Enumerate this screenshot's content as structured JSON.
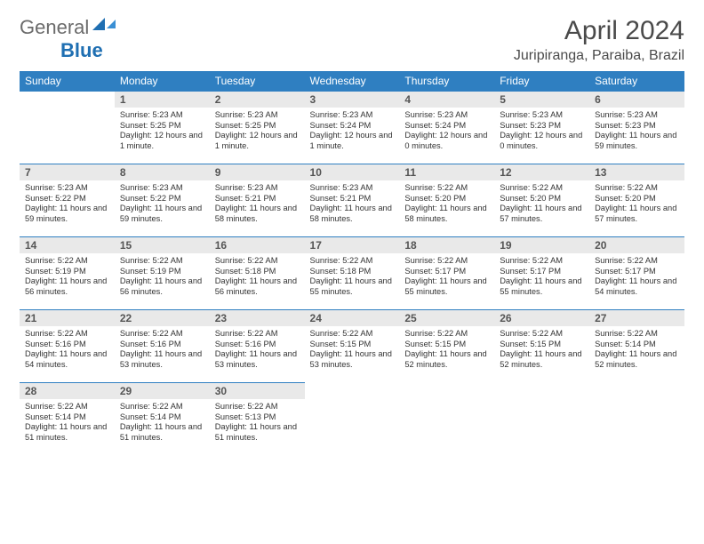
{
  "brand": {
    "text1": "General",
    "text2": "Blue"
  },
  "header": {
    "title": "April 2024",
    "location": "Juripiranga, Paraiba, Brazil"
  },
  "weekdays": [
    "Sunday",
    "Monday",
    "Tuesday",
    "Wednesday",
    "Thursday",
    "Friday",
    "Saturday"
  ],
  "colors": {
    "header_bg": "#2f7fc1",
    "header_text": "#ffffff",
    "daynum_bg": "#e9e9e9",
    "body_text": "#333333",
    "title_text": "#4a4a4a",
    "rule": "#2f7fc1"
  },
  "start_weekday": 1,
  "days": [
    {
      "n": 1,
      "sunrise": "5:23 AM",
      "sunset": "5:25 PM",
      "daylight": "12 hours and 1 minute."
    },
    {
      "n": 2,
      "sunrise": "5:23 AM",
      "sunset": "5:25 PM",
      "daylight": "12 hours and 1 minute."
    },
    {
      "n": 3,
      "sunrise": "5:23 AM",
      "sunset": "5:24 PM",
      "daylight": "12 hours and 1 minute."
    },
    {
      "n": 4,
      "sunrise": "5:23 AM",
      "sunset": "5:24 PM",
      "daylight": "12 hours and 0 minutes."
    },
    {
      "n": 5,
      "sunrise": "5:23 AM",
      "sunset": "5:23 PM",
      "daylight": "12 hours and 0 minutes."
    },
    {
      "n": 6,
      "sunrise": "5:23 AM",
      "sunset": "5:23 PM",
      "daylight": "11 hours and 59 minutes."
    },
    {
      "n": 7,
      "sunrise": "5:23 AM",
      "sunset": "5:22 PM",
      "daylight": "11 hours and 59 minutes."
    },
    {
      "n": 8,
      "sunrise": "5:23 AM",
      "sunset": "5:22 PM",
      "daylight": "11 hours and 59 minutes."
    },
    {
      "n": 9,
      "sunrise": "5:23 AM",
      "sunset": "5:21 PM",
      "daylight": "11 hours and 58 minutes."
    },
    {
      "n": 10,
      "sunrise": "5:23 AM",
      "sunset": "5:21 PM",
      "daylight": "11 hours and 58 minutes."
    },
    {
      "n": 11,
      "sunrise": "5:22 AM",
      "sunset": "5:20 PM",
      "daylight": "11 hours and 58 minutes."
    },
    {
      "n": 12,
      "sunrise": "5:22 AM",
      "sunset": "5:20 PM",
      "daylight": "11 hours and 57 minutes."
    },
    {
      "n": 13,
      "sunrise": "5:22 AM",
      "sunset": "5:20 PM",
      "daylight": "11 hours and 57 minutes."
    },
    {
      "n": 14,
      "sunrise": "5:22 AM",
      "sunset": "5:19 PM",
      "daylight": "11 hours and 56 minutes."
    },
    {
      "n": 15,
      "sunrise": "5:22 AM",
      "sunset": "5:19 PM",
      "daylight": "11 hours and 56 minutes."
    },
    {
      "n": 16,
      "sunrise": "5:22 AM",
      "sunset": "5:18 PM",
      "daylight": "11 hours and 56 minutes."
    },
    {
      "n": 17,
      "sunrise": "5:22 AM",
      "sunset": "5:18 PM",
      "daylight": "11 hours and 55 minutes."
    },
    {
      "n": 18,
      "sunrise": "5:22 AM",
      "sunset": "5:17 PM",
      "daylight": "11 hours and 55 minutes."
    },
    {
      "n": 19,
      "sunrise": "5:22 AM",
      "sunset": "5:17 PM",
      "daylight": "11 hours and 55 minutes."
    },
    {
      "n": 20,
      "sunrise": "5:22 AM",
      "sunset": "5:17 PM",
      "daylight": "11 hours and 54 minutes."
    },
    {
      "n": 21,
      "sunrise": "5:22 AM",
      "sunset": "5:16 PM",
      "daylight": "11 hours and 54 minutes."
    },
    {
      "n": 22,
      "sunrise": "5:22 AM",
      "sunset": "5:16 PM",
      "daylight": "11 hours and 53 minutes."
    },
    {
      "n": 23,
      "sunrise": "5:22 AM",
      "sunset": "5:16 PM",
      "daylight": "11 hours and 53 minutes."
    },
    {
      "n": 24,
      "sunrise": "5:22 AM",
      "sunset": "5:15 PM",
      "daylight": "11 hours and 53 minutes."
    },
    {
      "n": 25,
      "sunrise": "5:22 AM",
      "sunset": "5:15 PM",
      "daylight": "11 hours and 52 minutes."
    },
    {
      "n": 26,
      "sunrise": "5:22 AM",
      "sunset": "5:15 PM",
      "daylight": "11 hours and 52 minutes."
    },
    {
      "n": 27,
      "sunrise": "5:22 AM",
      "sunset": "5:14 PM",
      "daylight": "11 hours and 52 minutes."
    },
    {
      "n": 28,
      "sunrise": "5:22 AM",
      "sunset": "5:14 PM",
      "daylight": "11 hours and 51 minutes."
    },
    {
      "n": 29,
      "sunrise": "5:22 AM",
      "sunset": "5:14 PM",
      "daylight": "11 hours and 51 minutes."
    },
    {
      "n": 30,
      "sunrise": "5:22 AM",
      "sunset": "5:13 PM",
      "daylight": "11 hours and 51 minutes."
    }
  ],
  "labels": {
    "sunrise": "Sunrise:",
    "sunset": "Sunset:",
    "daylight": "Daylight:"
  }
}
